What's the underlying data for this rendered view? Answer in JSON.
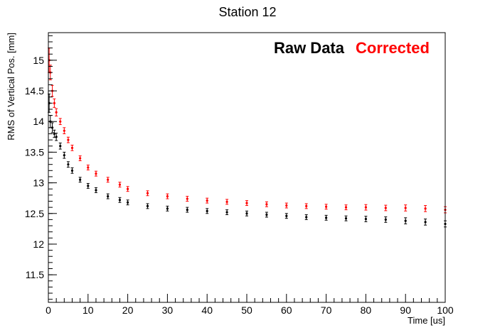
{
  "chart_data": {
    "type": "scatter",
    "title": "Station 12",
    "xlabel": "Time [us]",
    "ylabel": "RMS of Vertical Pos. [mm]",
    "xlim": [
      0,
      100
    ],
    "ylim": [
      11.05,
      15.45
    ],
    "xticks": [
      0,
      10,
      20,
      30,
      40,
      50,
      60,
      70,
      80,
      90,
      100
    ],
    "yticks": [
      11.5,
      12,
      12.5,
      13,
      13.5,
      14,
      14.5,
      15
    ],
    "grid": false,
    "legend_position": "top-right",
    "series": [
      {
        "name": "Raw Data",
        "color": "#000000",
        "error_bars": true,
        "x": [
          0.2,
          0.5,
          1,
          1.5,
          2,
          3,
          4,
          5,
          6,
          8,
          10,
          12,
          15,
          18,
          20,
          25,
          30,
          35,
          40,
          45,
          50,
          55,
          60,
          65,
          70,
          75,
          80,
          85,
          90,
          95,
          100
        ],
        "y": [
          14.3,
          14.0,
          13.9,
          13.8,
          13.75,
          13.6,
          13.45,
          13.3,
          13.2,
          13.05,
          12.95,
          12.88,
          12.78,
          12.72,
          12.68,
          12.62,
          12.58,
          12.56,
          12.54,
          12.52,
          12.5,
          12.48,
          12.46,
          12.44,
          12.43,
          12.42,
          12.41,
          12.4,
          12.38,
          12.36,
          12.33
        ],
        "err": [
          0.15,
          0.1,
          0.08,
          0.06,
          0.06,
          0.05,
          0.05,
          0.045,
          0.045,
          0.04,
          0.04,
          0.04,
          0.04,
          0.04,
          0.04,
          0.04,
          0.04,
          0.04,
          0.04,
          0.04,
          0.04,
          0.04,
          0.04,
          0.04,
          0.04,
          0.04,
          0.045,
          0.045,
          0.05,
          0.05,
          0.05
        ]
      },
      {
        "name": "Corrected",
        "color": "#ff0000",
        "error_bars": true,
        "x": [
          0.2,
          0.5,
          1,
          1.5,
          2,
          3,
          4,
          5,
          6,
          8,
          10,
          12,
          15,
          18,
          20,
          25,
          30,
          35,
          40,
          45,
          50,
          55,
          60,
          65,
          70,
          75,
          80,
          85,
          90,
          95,
          100
        ],
        "y": [
          15.0,
          14.8,
          14.5,
          14.3,
          14.15,
          14.0,
          13.85,
          13.7,
          13.57,
          13.4,
          13.25,
          13.15,
          13.05,
          12.97,
          12.9,
          12.83,
          12.78,
          12.74,
          12.71,
          12.69,
          12.67,
          12.65,
          12.63,
          12.62,
          12.61,
          12.6,
          12.6,
          12.59,
          12.59,
          12.58,
          12.56
        ],
        "err": [
          0.2,
          0.12,
          0.09,
          0.07,
          0.06,
          0.05,
          0.05,
          0.045,
          0.045,
          0.04,
          0.04,
          0.04,
          0.04,
          0.04,
          0.04,
          0.04,
          0.04,
          0.04,
          0.04,
          0.04,
          0.04,
          0.04,
          0.04,
          0.04,
          0.04,
          0.04,
          0.045,
          0.045,
          0.05,
          0.05,
          0.05
        ]
      }
    ]
  }
}
